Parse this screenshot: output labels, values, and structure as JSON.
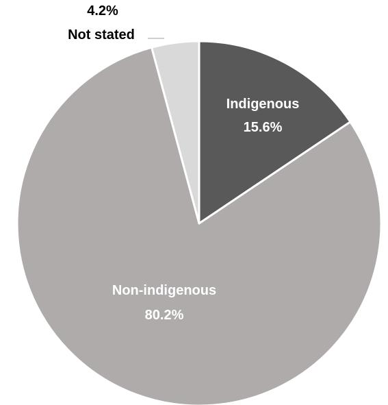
{
  "chart_data": {
    "type": "pie",
    "title": "",
    "slices": [
      {
        "label": "Indigenous",
        "value": 15.6,
        "value_label": "15.6%",
        "color": "#595959",
        "label_color": "#ffffff"
      },
      {
        "label": "Non-indigenous",
        "value": 80.2,
        "value_label": "80.2%",
        "color": "#afabab",
        "label_color": "#ffffff"
      },
      {
        "label": "Not stated",
        "value": 4.2,
        "value_label": "4.2%",
        "color": "#d9d9d9",
        "label_color": "#000000"
      }
    ],
    "start_angle": "12 o'clock",
    "direction": "clockwise",
    "legend": "none"
  }
}
